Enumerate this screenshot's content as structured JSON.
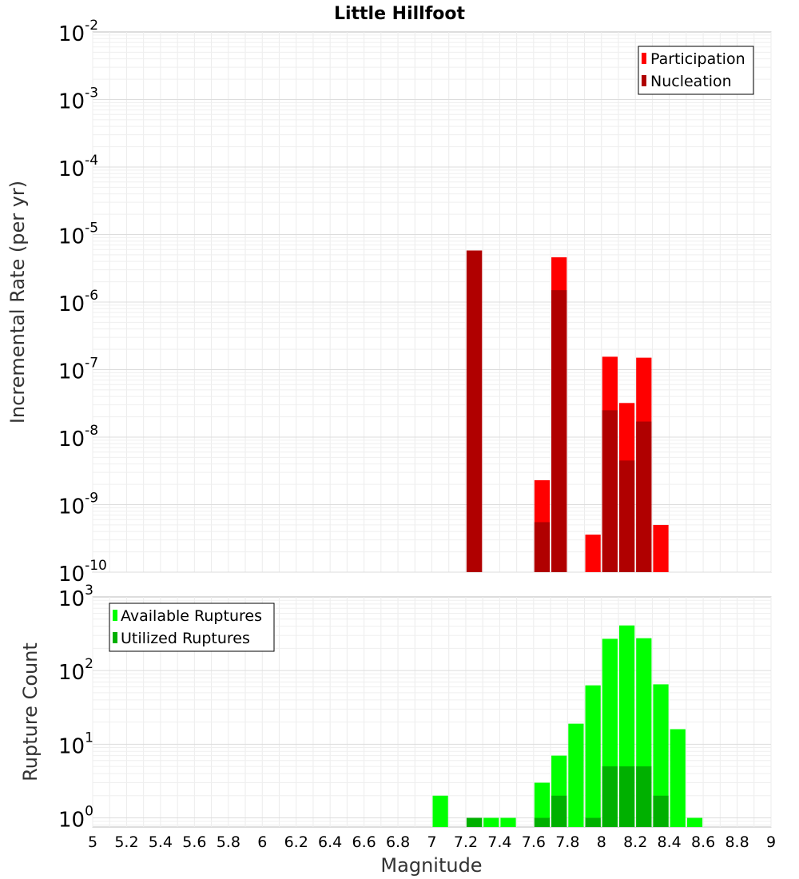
{
  "chart_data": [
    {
      "type": "bar",
      "title": "Little Hillfoot",
      "xlabel": "",
      "ylabel": "Incremental Rate (per yr)",
      "y_scale": "log",
      "ylim": [
        1e-10,
        0.01
      ],
      "xlim": [
        5,
        9
      ],
      "bar_width": 0.1,
      "grid": true,
      "legend_position": "top-right",
      "y_tick_exponents": [
        "-10",
        "-9",
        "-8",
        "-7",
        "-6",
        "-5",
        "-4",
        "-3",
        "-2"
      ],
      "series": [
        {
          "name": "Participation",
          "color": "#ff0000",
          "x": [
            7.25,
            7.65,
            7.75,
            7.95,
            8.05,
            8.15,
            8.25,
            8.35
          ],
          "values": [
            5.8e-06,
            2.3e-09,
            4.6e-06,
            3.6e-10,
            1.55e-07,
            3.2e-08,
            1.5e-07,
            5e-10
          ]
        },
        {
          "name": "Nucleation",
          "color": "#b00000",
          "x": [
            7.25,
            7.65,
            7.75,
            8.05,
            8.15,
            8.25
          ],
          "values": [
            5.8e-06,
            5.5e-10,
            1.5e-06,
            2.5e-08,
            4.5e-09,
            1.7e-08
          ]
        }
      ]
    },
    {
      "type": "bar",
      "title": "",
      "xlabel": "Magnitude",
      "ylabel": "Rupture Count",
      "y_scale": "log",
      "ylim": [
        0.75,
        1000
      ],
      "xlim": [
        5,
        9
      ],
      "bar_width": 0.1,
      "grid": true,
      "legend_position": "top-left",
      "x_ticks": [
        "5",
        "5.2",
        "5.4",
        "5.6",
        "5.8",
        "6",
        "6.2",
        "6.4",
        "6.6",
        "6.8",
        "7",
        "7.2",
        "7.4",
        "7.6",
        "7.8",
        "8",
        "8.2",
        "8.4",
        "8.6",
        "8.8",
        "9"
      ],
      "y_tick_exponents": [
        "0",
        "1",
        "2",
        "3"
      ],
      "series": [
        {
          "name": "Available Ruptures",
          "color": "#00ff00",
          "x": [
            7.05,
            7.25,
            7.35,
            7.45,
            7.65,
            7.75,
            7.85,
            7.95,
            8.05,
            8.15,
            8.25,
            8.35,
            8.45,
            8.55
          ],
          "values": [
            2,
            1,
            1,
            1,
            3,
            7,
            19,
            63,
            270,
            410,
            275,
            65,
            16,
            1
          ]
        },
        {
          "name": "Utilized Ruptures",
          "color": "#00b000",
          "x": [
            7.25,
            7.65,
            7.75,
            7.95,
            8.05,
            8.15,
            8.25,
            8.35
          ],
          "values": [
            1,
            1,
            2,
            1,
            5,
            5,
            5,
            2
          ]
        }
      ]
    }
  ]
}
